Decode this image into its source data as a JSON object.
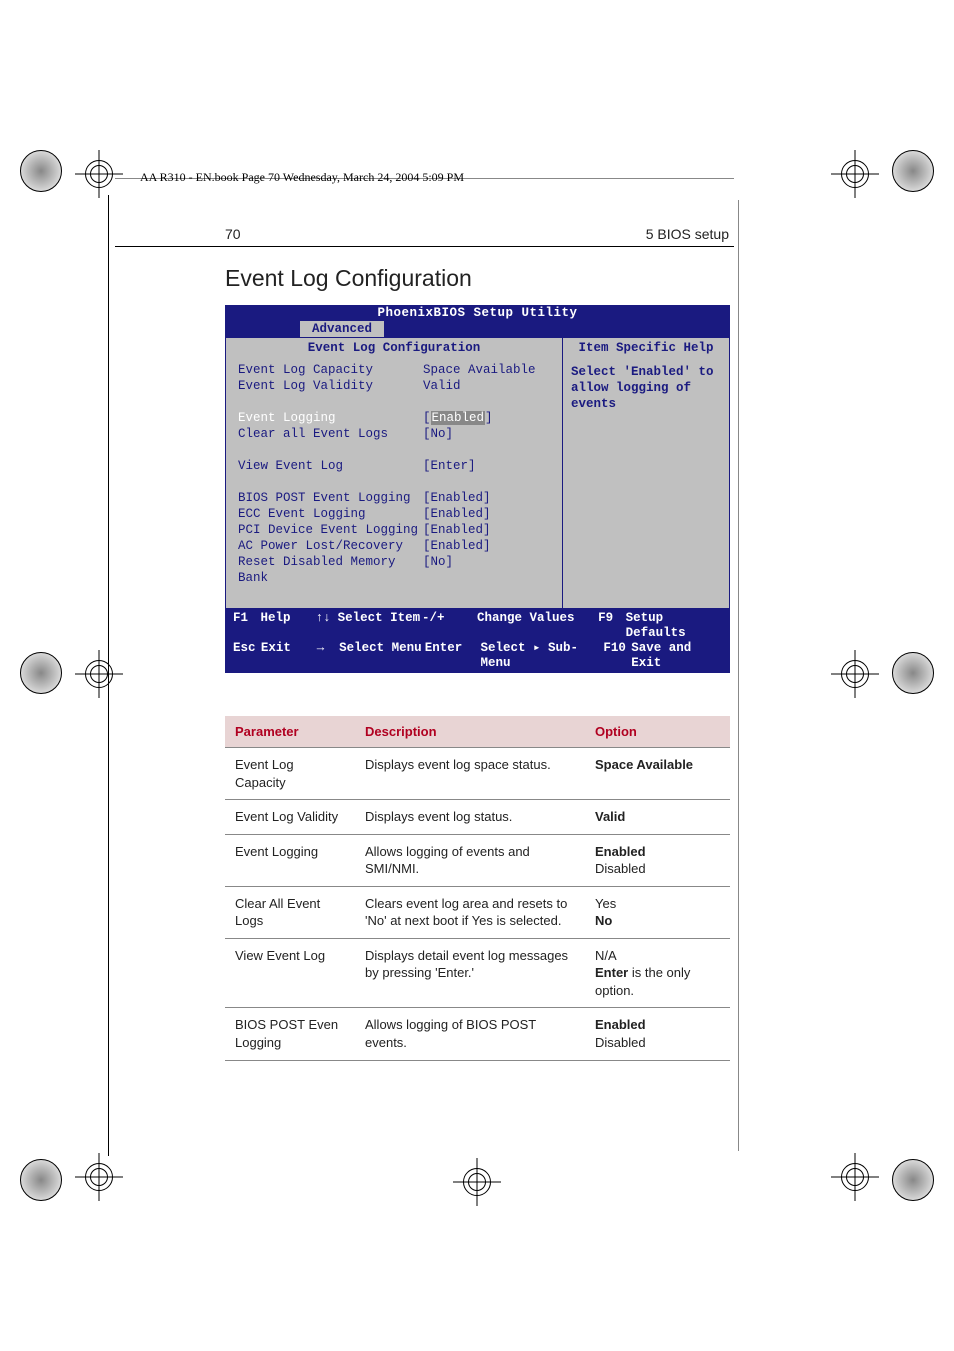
{
  "header": {
    "book_info": "AA R310 - EN.book  Page 70  Wednesday, March 24, 2004  5:09 PM",
    "page_num": "70",
    "chapter": "5 BIOS setup"
  },
  "section_title": "Event Log Configuration",
  "bios": {
    "title": "PhoenixBIOS Setup Utility",
    "tab": "Advanced",
    "left_title": "Event Log Configuration",
    "right_title": "Item Specific Help",
    "help_text_1": "Select 'Enabled' to",
    "help_text_2": "allow logging of events",
    "rows": {
      "r1_label": "Event Log Capacity",
      "r1_val": "Space Available",
      "r2_label": "Event Log Validity",
      "r2_val": "Valid",
      "r3_label": "Event Logging",
      "r3_val": "Enabled",
      "r4_label": "Clear all Event Logs",
      "r4_val": "[No]",
      "r5_label": "View Event Log",
      "r5_val": "[Enter]",
      "r6_label": "BIOS POST Event Logging",
      "r6_val": "[Enabled]",
      "r7_label": "ECC Event Logging",
      "r7_val": "[Enabled]",
      "r8_label": "PCI Device Event Logging",
      "r8_val": "[Enabled]",
      "r9_label": "AC Power Lost/Recovery",
      "r9_val": "[Enabled]",
      "r10_label": "Reset Disabled Memory Bank",
      "r10_val": "[No]"
    },
    "footer": {
      "f1": "F1",
      "help": "Help",
      "updown": "↑↓",
      "select_item": "Select Item",
      "plusminus": "-/+",
      "change_values": "Change Values",
      "f9": "F9",
      "setup_defaults": "Setup Defaults",
      "esc": "Esc",
      "exit": "Exit",
      "leftright": "←  →",
      "select_menu": "Select Menu",
      "enter": "Enter",
      "select_submenu": "Select ▸ Sub-Menu",
      "f10": "F10",
      "save_exit": "Save and Exit"
    }
  },
  "table": {
    "h1": "Parameter",
    "h2": "Description",
    "h3": "Option",
    "rows": [
      {
        "p": "Event Log Capacity",
        "d": "Displays event log space status.",
        "o": "<b>Space Available</b>"
      },
      {
        "p": "Event Log Validity",
        "d": "Displays event log status.",
        "o": "<b>Valid</b>"
      },
      {
        "p": "Event Logging",
        "d": "Allows logging of events and SMI/NMI.",
        "o": "<b>Enabled</b><br>Disabled"
      },
      {
        "p": "Clear All Event Logs",
        "d": "Clears event log area and resets to 'No' at next boot if Yes is selected.",
        "o": "Yes<br><b>No</b>"
      },
      {
        "p": "View Event Log",
        "d": "Displays detail event log messages by pressing 'Enter.'",
        "o": "N/A<br><b>Enter</b> is the only option."
      },
      {
        "p": "BIOS POST Even Logging",
        "d": "Allows logging of BIOS POST events.",
        "o": "<b>Enabled</b><br>Disabled"
      }
    ]
  }
}
